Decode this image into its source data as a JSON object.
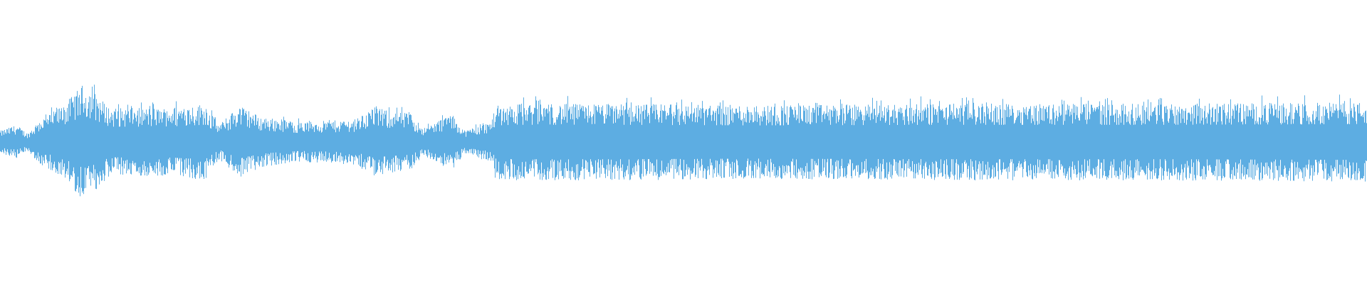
{
  "waveform": {
    "color": "#5dade2",
    "background": "#ffffff",
    "envelope": [
      {
        "t": 0.0,
        "amp": 0.08
      },
      {
        "t": 0.012,
        "amp": 0.12
      },
      {
        "t": 0.02,
        "amp": 0.06
      },
      {
        "t": 0.028,
        "amp": 0.15
      },
      {
        "t": 0.04,
        "amp": 0.22
      },
      {
        "t": 0.05,
        "amp": 0.3
      },
      {
        "t": 0.06,
        "amp": 0.4
      },
      {
        "t": 0.068,
        "amp": 0.36
      },
      {
        "t": 0.08,
        "amp": 0.24
      },
      {
        "t": 0.12,
        "amp": 0.24
      },
      {
        "t": 0.15,
        "amp": 0.27
      },
      {
        "t": 0.16,
        "amp": 0.12
      },
      {
        "t": 0.175,
        "amp": 0.26
      },
      {
        "t": 0.19,
        "amp": 0.18
      },
      {
        "t": 0.22,
        "amp": 0.14
      },
      {
        "t": 0.26,
        "amp": 0.16
      },
      {
        "t": 0.272,
        "amp": 0.24
      },
      {
        "t": 0.3,
        "amp": 0.2
      },
      {
        "t": 0.31,
        "amp": 0.1
      },
      {
        "t": 0.33,
        "amp": 0.2
      },
      {
        "t": 0.34,
        "amp": 0.08
      },
      {
        "t": 0.36,
        "amp": 0.15
      },
      {
        "t": 0.362,
        "amp": 0.26
      },
      {
        "t": 0.38,
        "amp": 0.27
      },
      {
        "t": 0.45,
        "amp": 0.27
      },
      {
        "t": 0.55,
        "amp": 0.26
      },
      {
        "t": 0.7,
        "amp": 0.27
      },
      {
        "t": 0.85,
        "amp": 0.27
      },
      {
        "t": 1.0,
        "amp": 0.28
      }
    ]
  }
}
